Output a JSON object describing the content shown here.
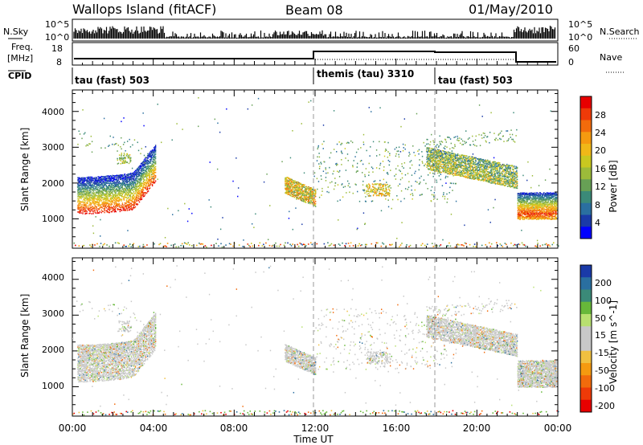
{
  "header": {
    "station": "Wallops Island (fitACF)",
    "beam": "Beam 08",
    "date": "01/May/2010"
  },
  "status_panel": {
    "nsky_label": "N.Sky",
    "nsearch_label": "N.Search",
    "freq_label_1": "Freq.",
    "freq_label_2": "[MHz]",
    "nave_label": "Nave",
    "cpid_label": "CPID",
    "noise_ticks": [
      "10^5",
      "10^0"
    ],
    "freq_ticks": [
      "18",
      "8"
    ],
    "nave_ticks": [
      "60",
      "0"
    ]
  },
  "cpid_segments": [
    {
      "label": "tau (fast) 503",
      "start_hour": 0
    },
    {
      "label": "themis (tau) 3310",
      "start_hour": 12
    },
    {
      "label": "tau (fast) 503",
      "start_hour": 18
    }
  ],
  "chart_data": [
    {
      "type": "heatmap",
      "panel": "power",
      "ylabel": "Slant Range [km]",
      "ylim": [
        180,
        4600
      ],
      "xlim_hours": [
        0,
        24
      ],
      "yticks": [
        "1000",
        "2000",
        "3000",
        "4000"
      ],
      "colorbar_label": "Power [dB]",
      "colorbar_ticks": [
        "4",
        "8",
        "12",
        "16",
        "20",
        "24",
        "28"
      ],
      "colors": [
        "#0000ff",
        "#1a3aa8",
        "#2a6fa0",
        "#3b8a78",
        "#67a055",
        "#9cbb3a",
        "#c9c820",
        "#f0b818",
        "#f59a10",
        "#f26b0c",
        "#ee3a08",
        "#e80000"
      ],
      "echo_regions": [
        {
          "x": [
            0.2,
            4.1
          ],
          "y": [
            1100,
            3300
          ],
          "desc": "arc",
          "value_range": "4-28 dB"
        },
        {
          "x": [
            10.5,
            12.0
          ],
          "y": [
            1300,
            1950
          ],
          "value_range": "8-24 dB"
        },
        {
          "x": [
            12.0,
            19.0
          ],
          "y": [
            1500,
            3200
          ],
          "value_range": "4-20 dB"
        },
        {
          "x": [
            17.5,
            22.0
          ],
          "y": [
            1400,
            3300
          ],
          "value_range": "4-24 dB"
        },
        {
          "x": [
            22.0,
            24.0
          ],
          "y": [
            1000,
            1800
          ],
          "value_range": "4-28 dB"
        }
      ]
    },
    {
      "type": "heatmap",
      "panel": "velocity",
      "ylabel": "Slant Range [km]",
      "ylim": [
        180,
        4600
      ],
      "xlim_hours": [
        0,
        24
      ],
      "yticks": [
        "1000",
        "2000",
        "3000",
        "4000"
      ],
      "colorbar_label": "Velocity [m s^-1]",
      "colorbar_ticks": [
        "200",
        "100",
        "50",
        "15",
        "-15",
        "-50",
        "-100",
        "-200"
      ],
      "colors": [
        "#1a3aa8",
        "#2a6fa0",
        "#3b8a78",
        "#67b83a",
        "#b8e070",
        "#c8c8c8",
        "#c8c8c8",
        "#f0c040",
        "#f59a10",
        "#f26b0c",
        "#ee3a08",
        "#e80000"
      ],
      "echo_regions": [
        {
          "x": [
            0.2,
            4.1
          ],
          "y": [
            1100,
            3300
          ],
          "desc": "ground scatter, gray"
        },
        {
          "x": [
            10.5,
            12.0
          ],
          "y": [
            1300,
            1950
          ]
        },
        {
          "x": [
            12.0,
            19.0
          ],
          "y": [
            1500,
            3200
          ]
        },
        {
          "x": [
            17.5,
            22.0
          ],
          "y": [
            1400,
            3300
          ]
        },
        {
          "x": [
            22.0,
            24.0
          ],
          "y": [
            1000,
            1800
          ]
        }
      ]
    }
  ],
  "xaxis": {
    "ticks": [
      "00:00",
      "04:00",
      "08:00",
      "12:00",
      "16:00",
      "20:00",
      "00:00"
    ],
    "label": "Time UT"
  }
}
